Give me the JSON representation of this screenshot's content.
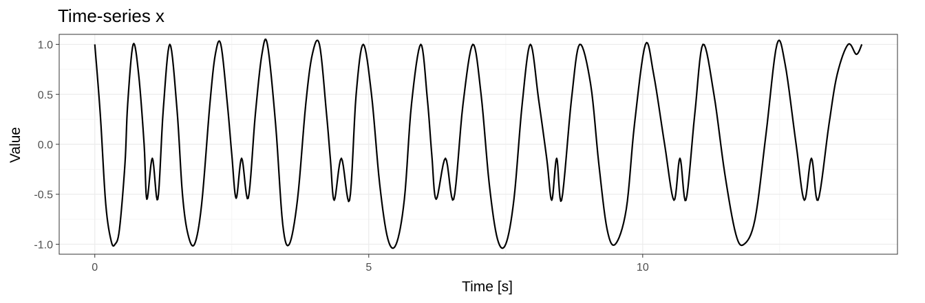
{
  "chart_data": {
    "type": "line",
    "title": "Time-series x",
    "xlabel": "Time [s]",
    "ylabel": "Value",
    "xlim": [
      -0.65,
      14.65
    ],
    "ylim": [
      -1.1,
      1.1
    ],
    "x_ticks": [
      0,
      5,
      10
    ],
    "x_tick_labels": [
      "0",
      "5",
      "10"
    ],
    "y_ticks": [
      -1.0,
      -0.5,
      0.0,
      0.5,
      1.0
    ],
    "y_tick_labels": [
      "-1.0",
      "-0.5",
      "0.0",
      "0.5",
      "1.0"
    ],
    "grid": true,
    "legend": "none",
    "series": [
      {
        "color": "#000000",
        "x": [
          0.0,
          0.1,
          0.2,
          0.3,
          0.37,
          0.45,
          0.55,
          0.6,
          0.7,
          0.8,
          0.9,
          0.95,
          1.05,
          1.15,
          1.25,
          1.37,
          1.5,
          1.6,
          1.7,
          1.82,
          1.95,
          2.1,
          2.2,
          2.3,
          2.42,
          2.5,
          2.58,
          2.68,
          2.8,
          2.93,
          3.05,
          3.15,
          3.3,
          3.43,
          3.55,
          3.7,
          3.85,
          3.97,
          4.1,
          4.23,
          4.3,
          4.37,
          4.5,
          4.65,
          4.77,
          4.9,
          5.05,
          5.2,
          5.35,
          5.5,
          5.65,
          5.78,
          5.95,
          6.07,
          6.15,
          6.23,
          6.4,
          6.55,
          6.72,
          6.9,
          7.05,
          7.2,
          7.35,
          7.5,
          7.65,
          7.8,
          7.95,
          8.1,
          8.25,
          8.34,
          8.43,
          8.52,
          8.7,
          8.85,
          9.05,
          9.2,
          9.35,
          9.5,
          9.7,
          9.85,
          10.05,
          10.2,
          10.4,
          10.57,
          10.68,
          10.79,
          10.95,
          11.1,
          11.3,
          11.5,
          11.7,
          11.85,
          12.05,
          12.25,
          12.45,
          12.6,
          12.8,
          12.95,
          13.08,
          13.2,
          13.4,
          13.55,
          13.75,
          13.9,
          14.0
        ],
        "y": [
          1.0,
          0.3,
          -0.6,
          -0.97,
          -1.0,
          -0.85,
          -0.2,
          0.4,
          1.0,
          0.7,
          0.0,
          -0.55,
          -0.14,
          -0.55,
          0.35,
          1.0,
          0.35,
          -0.5,
          -0.9,
          -1.0,
          -0.6,
          0.4,
          0.9,
          1.0,
          0.4,
          -0.1,
          -0.54,
          -0.14,
          -0.54,
          0.3,
          0.9,
          1.0,
          0.2,
          -0.8,
          -1.0,
          -0.55,
          0.4,
          0.9,
          1.0,
          0.3,
          -0.15,
          -0.56,
          -0.14,
          -0.56,
          0.5,
          1.0,
          0.5,
          -0.4,
          -0.95,
          -1.0,
          -0.55,
          0.4,
          1.0,
          0.45,
          -0.1,
          -0.55,
          -0.14,
          -0.55,
          0.4,
          1.0,
          0.5,
          -0.4,
          -0.95,
          -1.0,
          -0.55,
          0.4,
          1.0,
          0.45,
          -0.15,
          -0.56,
          -0.14,
          -0.56,
          0.45,
          1.0,
          0.6,
          -0.2,
          -0.85,
          -1.0,
          -0.65,
          0.2,
          1.0,
          0.7,
          0.0,
          -0.56,
          -0.14,
          -0.56,
          0.3,
          1.0,
          0.5,
          -0.3,
          -0.9,
          -1.0,
          -0.75,
          0.1,
          1.0,
          0.8,
          0.0,
          -0.56,
          -0.14,
          -0.56,
          0.2,
          0.7,
          1.0,
          0.9,
          1.0
        ]
      }
    ]
  }
}
